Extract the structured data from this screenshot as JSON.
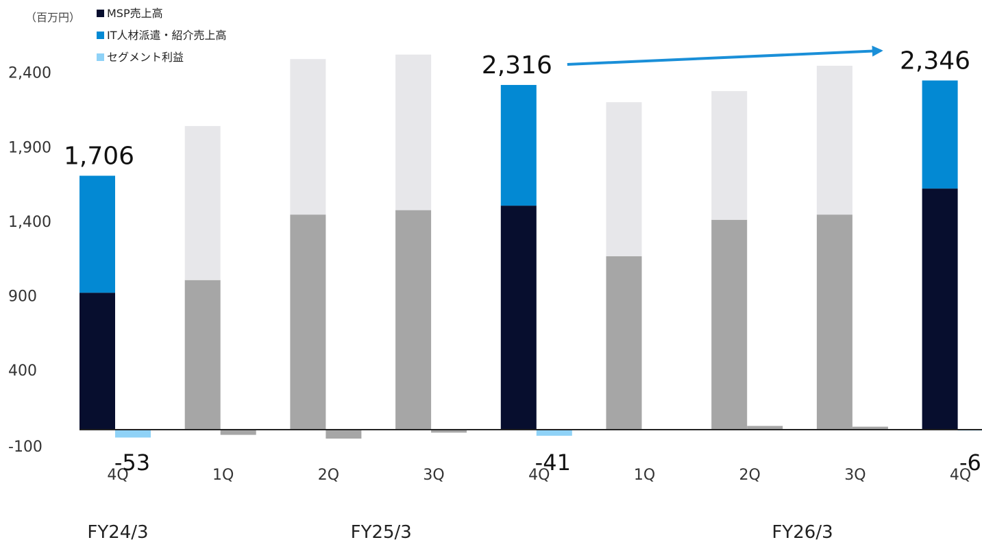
{
  "chart_data": {
    "type": "bar",
    "unit_label": "（百万円）",
    "legend": [
      {
        "label": "MSP売上高",
        "color": "#070e2e"
      },
      {
        "label": "IT人材派遣・紹介売上高",
        "color": "#0389d3"
      },
      {
        "label": "セグメント利益",
        "color": "#8fd2f7"
      }
    ],
    "categories": [
      "4Q",
      "1Q",
      "2Q",
      "3Q",
      "4Q",
      "1Q",
      "2Q",
      "3Q",
      "4Q"
    ],
    "fiscal_years": [
      {
        "label": "FY24/3",
        "start": 0,
        "end": 0
      },
      {
        "label": "FY25/3",
        "start": 1,
        "end": 4
      },
      {
        "label": "FY26/3",
        "start": 5,
        "end": 8
      }
    ],
    "y_ticks": [
      "-100",
      "400",
      "900",
      "1,400",
      "1,900",
      "2,400"
    ],
    "ylim": [
      -100,
      2400
    ],
    "highlighted": [
      0,
      4,
      8
    ],
    "series": [
      {
        "name": "MSP売上高",
        "values": [
          920,
          1005,
          1445,
          1475,
          1505,
          1165,
          1410,
          1445,
          1620
        ]
      },
      {
        "name": "IT人材派遣・紹介売上高",
        "values": [
          786,
          1035,
          1045,
          1045,
          811,
          1035,
          865,
          1000,
          726
        ]
      },
      {
        "name": "セグメント利益",
        "values": [
          -53,
          -35,
          -60,
          -20,
          -41,
          -3,
          25,
          20,
          -6
        ]
      }
    ],
    "total_labels": [
      {
        "index": 0,
        "text": "1,706"
      },
      {
        "index": 4,
        "text": "2,316"
      },
      {
        "index": 8,
        "text": "2,346"
      }
    ],
    "profit_labels": [
      {
        "index": 0,
        "text": "-53"
      },
      {
        "index": 4,
        "text": "-41"
      },
      {
        "index": 8,
        "text": "-6"
      }
    ],
    "arrow": {
      "from": 4,
      "to": 8
    }
  }
}
